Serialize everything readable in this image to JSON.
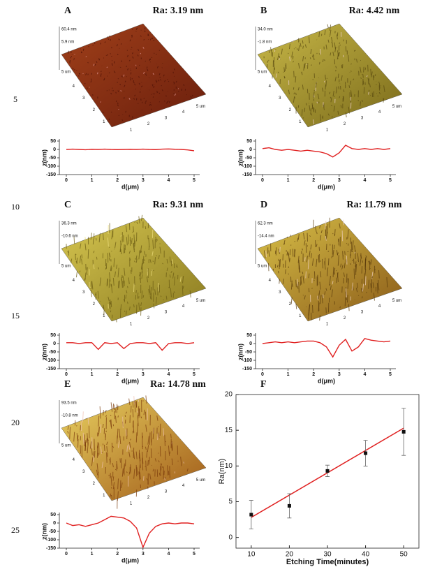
{
  "line_numbers": [
    "5",
    "10",
    "15",
    "20",
    "25"
  ],
  "panels": [
    {
      "label": "A",
      "ra": "Ra: 3.19 nm",
      "surface": {
        "zmax": "60.4 nm",
        "zmid": "5.9 nm",
        "zaxis": "5 um",
        "depth_ticks": [
          "4",
          "3",
          "2",
          "1"
        ],
        "width_ticks": [
          "1",
          "2",
          "3",
          "4",
          "5 um"
        ]
      },
      "profile": {
        "ylabel": "z(nm)",
        "xlabel": "d(μm)",
        "xlim": [
          0,
          5
        ],
        "ylim": [
          -150,
          50
        ],
        "xticks": [
          0,
          1,
          2,
          3,
          4,
          5
        ],
        "yticks": [
          50,
          0,
          -50,
          -100,
          -150
        ],
        "x": [
          0,
          0.25,
          0.5,
          0.75,
          1,
          1.25,
          1.5,
          1.75,
          2,
          2.25,
          2.5,
          2.75,
          3,
          3.25,
          3.5,
          3.75,
          4,
          4.25,
          4.5,
          4.75,
          5
        ],
        "values": [
          0,
          2,
          0,
          -2,
          1,
          0,
          2,
          0,
          -1,
          0,
          1,
          0,
          2,
          0,
          -1,
          2,
          3,
          1,
          0,
          -3,
          -8
        ]
      }
    },
    {
      "label": "B",
      "ra": "Ra: 4.42 nm",
      "surface": {
        "zmax": "34.0 nm",
        "zmid": "-1.8 nm",
        "zaxis": "5 um",
        "depth_ticks": [
          "4",
          "3",
          "2",
          "1"
        ],
        "width_ticks": [
          "1",
          "2",
          "3",
          "4",
          "5 um"
        ]
      },
      "profile": {
        "ylabel": "z(nm)",
        "xlabel": "d(μm)",
        "xlim": [
          0,
          5
        ],
        "ylim": [
          -150,
          50
        ],
        "xticks": [
          0,
          1,
          2,
          3,
          4,
          5
        ],
        "yticks": [
          50,
          0,
          -50,
          -100,
          -150
        ],
        "x": [
          0,
          0.25,
          0.5,
          0.75,
          1,
          1.25,
          1.5,
          1.75,
          2,
          2.25,
          2.5,
          2.75,
          3,
          3.25,
          3.5,
          3.75,
          4,
          4.25,
          4.5,
          4.75,
          5
        ],
        "values": [
          5,
          10,
          0,
          -5,
          0,
          -5,
          -10,
          -5,
          -10,
          -15,
          -25,
          -45,
          -20,
          25,
          5,
          0,
          5,
          0,
          5,
          0,
          5
        ]
      }
    },
    {
      "label": "C",
      "ra": "Ra: 9.31 nm",
      "surface": {
        "zmax": "36.3 nm",
        "zmid": "-10.6 nm",
        "zaxis": "5 um",
        "depth_ticks": [
          "4",
          "3",
          "2",
          "1"
        ],
        "width_ticks": [
          "1",
          "2",
          "3",
          "4",
          "5 um"
        ]
      },
      "profile": {
        "ylabel": "z(nm)",
        "xlabel": "d(μm)",
        "xlim": [
          0,
          5
        ],
        "ylim": [
          -150,
          50
        ],
        "xticks": [
          0,
          1,
          2,
          3,
          4,
          5
        ],
        "yticks": [
          50,
          0,
          -50,
          -100,
          -150
        ],
        "x": [
          0,
          0.25,
          0.5,
          0.75,
          1,
          1.25,
          1.5,
          1.75,
          2,
          2.25,
          2.5,
          2.75,
          3,
          3.25,
          3.5,
          3.75,
          4,
          4.25,
          4.5,
          4.75,
          5
        ],
        "values": [
          5,
          5,
          0,
          5,
          5,
          -35,
          5,
          0,
          5,
          -30,
          0,
          5,
          5,
          0,
          5,
          -40,
          0,
          5,
          5,
          0,
          5
        ]
      }
    },
    {
      "label": "D",
      "ra": "Ra: 11.79 nm",
      "surface": {
        "zmax": "62.3 nm",
        "zmid": "-14.4 nm",
        "zaxis": "5 um",
        "depth_ticks": [
          "4",
          "3",
          "2",
          "1"
        ],
        "width_ticks": [
          "1",
          "2",
          "3",
          "4",
          "5 um"
        ]
      },
      "profile": {
        "ylabel": "z(nm)",
        "xlabel": "d(μm)",
        "xlim": [
          0,
          5
        ],
        "ylim": [
          -150,
          50
        ],
        "xticks": [
          0,
          1,
          2,
          3,
          4,
          5
        ],
        "yticks": [
          50,
          0,
          -50,
          -100,
          -150
        ],
        "x": [
          0,
          0.25,
          0.5,
          0.75,
          1,
          1.25,
          1.5,
          1.75,
          2,
          2.25,
          2.5,
          2.75,
          3,
          3.25,
          3.5,
          3.75,
          4,
          4.25,
          4.5,
          4.75,
          5
        ],
        "values": [
          0,
          5,
          10,
          5,
          10,
          5,
          10,
          15,
          15,
          5,
          -20,
          -80,
          -10,
          25,
          -45,
          -20,
          30,
          20,
          15,
          10,
          15
        ]
      }
    },
    {
      "label": "E",
      "ra": "Ra: 14.78 nm",
      "surface": {
        "zmax": "93.5 nm",
        "zmid": "-10.8 nm",
        "zaxis": "5 um",
        "depth_ticks": [
          "4",
          "3",
          "2",
          "1"
        ],
        "width_ticks": [
          "1",
          "2",
          "3",
          "4",
          "5 um"
        ]
      },
      "profile": {
        "ylabel": "z(nm)",
        "xlabel": "d(μm)",
        "xlim": [
          0,
          5
        ],
        "ylim": [
          -150,
          50
        ],
        "xticks": [
          0,
          1,
          2,
          3,
          4,
          5
        ],
        "yticks": [
          50,
          0,
          -50,
          -100,
          -150
        ],
        "x": [
          0,
          0.25,
          0.5,
          0.75,
          1,
          1.25,
          1.5,
          1.75,
          2,
          2.25,
          2.5,
          2.75,
          3,
          3.25,
          3.5,
          3.75,
          4,
          4.25,
          4.5,
          4.75,
          5
        ],
        "values": [
          0,
          -15,
          -10,
          -20,
          -10,
          0,
          20,
          40,
          35,
          30,
          10,
          -30,
          -145,
          -60,
          -20,
          -5,
          0,
          -5,
          0,
          0,
          -5
        ]
      }
    }
  ],
  "chart_data": {
    "type": "scatter",
    "label": "F",
    "xlabel": "Etching Time(minutes)",
    "ylabel": "Ra(nm)",
    "x": [
      10,
      20,
      30,
      40,
      50
    ],
    "values": [
      3.19,
      4.42,
      9.31,
      11.79,
      14.78
    ],
    "errors": [
      2,
      1.7,
      0.8,
      1.8,
      3.3
    ],
    "color": "#111111",
    "fit": {
      "color": "#e02020",
      "x": [
        10,
        50
      ],
      "values": [
        2.8,
        15.3
      ]
    },
    "xlim": [
      6,
      54
    ],
    "ylim": [
      -1.5,
      20
    ],
    "xticks": [
      10,
      20,
      30,
      40,
      50
    ],
    "yticks": [
      0,
      5,
      10,
      15,
      20
    ]
  }
}
